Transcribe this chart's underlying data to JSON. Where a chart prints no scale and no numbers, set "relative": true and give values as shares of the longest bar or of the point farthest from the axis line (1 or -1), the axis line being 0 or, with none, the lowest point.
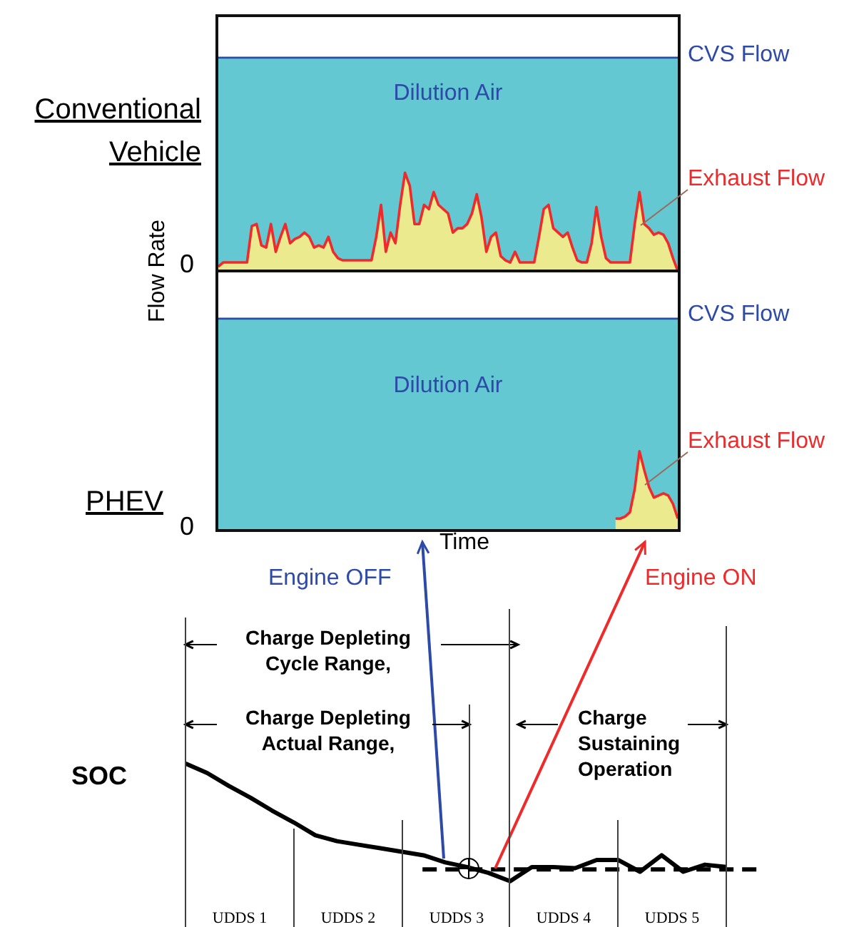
{
  "chart_data": [
    {
      "type": "area",
      "title": "Conventional Vehicle",
      "ylabel": "Flow Rate",
      "relative": true,
      "categories": [
        null,
        null,
        null,
        null,
        null,
        null,
        null,
        null,
        null,
        null,
        null,
        null,
        null,
        null,
        null,
        null,
        null,
        null,
        null,
        null,
        null,
        null,
        null,
        null,
        null,
        null,
        null,
        null,
        null,
        null,
        null,
        null,
        null,
        null,
        null,
        null,
        null,
        null,
        null,
        null,
        null,
        null,
        null,
        null,
        null,
        null,
        null,
        null,
        null,
        null,
        null,
        null,
        null,
        null,
        null,
        null,
        null,
        null,
        null,
        null,
        null,
        null,
        null,
        null,
        null,
        null,
        null,
        null,
        null,
        null,
        null,
        null,
        null,
        null,
        null,
        null,
        null,
        null,
        null,
        null,
        null,
        null,
        null,
        null,
        null,
        null,
        null,
        null,
        null,
        null,
        null,
        null,
        null,
        null,
        null,
        null,
        null
      ],
      "series": [
        {
          "name": "CVS Flow",
          "type": "line",
          "color": "#2e4aa8",
          "values": [
            1,
            1,
            1,
            1,
            1,
            1,
            1,
            1,
            1,
            1,
            1,
            1,
            1,
            1,
            1,
            1,
            1,
            1,
            1,
            1,
            1,
            1,
            1,
            1,
            1,
            1,
            1,
            1,
            1,
            1,
            1,
            1,
            1,
            1,
            1,
            1,
            1,
            1,
            1,
            1,
            1,
            1,
            1,
            1,
            1,
            1,
            1,
            1,
            1,
            1,
            1,
            1,
            1,
            1,
            1,
            1,
            1,
            1,
            1,
            1,
            1,
            1,
            1,
            1,
            1,
            1,
            1,
            1,
            1,
            1,
            1,
            1,
            1,
            1,
            1,
            1,
            1,
            1,
            1,
            1,
            1,
            1,
            1,
            1,
            1,
            1,
            1,
            1,
            1,
            1,
            1,
            1,
            1,
            1,
            1,
            1,
            1
          ]
        },
        {
          "name": "Exhaust Flow",
          "color": "#ee2a2a",
          "values": [
            0.02,
            0.04,
            0.04,
            0.04,
            0.04,
            0.04,
            0.04,
            0.21,
            0.22,
            0.12,
            0.11,
            0.22,
            0.09,
            0.16,
            0.22,
            0.13,
            0.15,
            0.16,
            0.18,
            0.16,
            0.11,
            0.12,
            0.11,
            0.16,
            0.09,
            0.06,
            0.05,
            0.05,
            0.05,
            0.05,
            0.05,
            0.05,
            0.05,
            0.16,
            0.31,
            0.09,
            0.18,
            0.13,
            0.31,
            0.46,
            0.4,
            0.22,
            0.22,
            0.31,
            0.29,
            0.37,
            0.31,
            0.29,
            0.27,
            0.18,
            0.2,
            0.2,
            0.22,
            0.27,
            0.36,
            0.25,
            0.09,
            0.16,
            0.18,
            0.07,
            0.05,
            0.04,
            0.09,
            0.04,
            0.04,
            0.04,
            0.04,
            0.16,
            0.29,
            0.31,
            0.2,
            0.18,
            0.16,
            0.18,
            0.11,
            0.05,
            0.04,
            0.04,
            0.13,
            0.3,
            0.16,
            0.06,
            0.04,
            0.04,
            0.04,
            0.04,
            0.04,
            0.22,
            0.37,
            0.22,
            0.2,
            0.17,
            0.18,
            0.17,
            0.13,
            0.06,
            0
          ]
        }
      ],
      "bands": [
        {
          "axis": "y",
          "from": 0,
          "to": 1,
          "label": "Dilution Air",
          "color": "#63c8d2"
        }
      ],
      "annotations": [
        "0"
      ]
    },
    {
      "type": "area",
      "title": "PHEV",
      "xlabel": "Time",
      "relative": true,
      "categories": [
        null,
        null,
        null,
        null,
        null,
        null,
        null,
        null,
        null,
        null,
        null,
        null,
        null,
        null,
        null,
        null,
        null,
        null,
        null,
        null,
        null,
        null,
        null,
        null,
        null,
        null,
        null,
        null,
        null,
        null,
        null,
        null,
        null,
        null,
        null,
        null,
        null,
        null,
        null,
        null,
        null,
        null,
        null,
        null,
        null,
        null,
        null,
        null,
        null,
        null,
        null,
        null,
        null,
        null,
        null,
        null,
        null,
        null,
        null,
        null,
        null,
        null,
        null,
        null,
        null,
        null,
        null,
        null,
        null,
        null,
        null,
        null,
        null,
        null,
        null,
        null,
        null,
        null,
        null,
        null,
        null,
        null,
        null,
        null,
        null,
        null,
        null,
        null,
        null,
        null,
        null,
        null,
        null,
        null,
        null,
        null,
        null
      ],
      "series": [
        {
          "name": "CVS Flow",
          "type": "line",
          "color": "#2e4aa8",
          "values": [
            1,
            1,
            1,
            1,
            1,
            1,
            1,
            1,
            1,
            1,
            1,
            1,
            1,
            1,
            1,
            1,
            1,
            1,
            1,
            1,
            1,
            1,
            1,
            1,
            1,
            1,
            1,
            1,
            1,
            1,
            1,
            1,
            1,
            1,
            1,
            1,
            1,
            1,
            1,
            1,
            1,
            1,
            1,
            1,
            1,
            1,
            1,
            1,
            1,
            1,
            1,
            1,
            1,
            1,
            1,
            1,
            1,
            1,
            1,
            1,
            1,
            1,
            1,
            1,
            1,
            1,
            1,
            1,
            1,
            1,
            1,
            1,
            1,
            1,
            1,
            1,
            1,
            1,
            1,
            1,
            1,
            1,
            1,
            1,
            1,
            1,
            1,
            1,
            1,
            1,
            1,
            1,
            1,
            1,
            1,
            1,
            1
          ]
        },
        {
          "name": "Exhaust Flow",
          "color": "#ee2a2a",
          "values": [
            null,
            null,
            null,
            null,
            null,
            null,
            null,
            null,
            null,
            null,
            null,
            null,
            null,
            null,
            null,
            null,
            null,
            null,
            null,
            null,
            null,
            null,
            null,
            null,
            null,
            null,
            null,
            null,
            null,
            null,
            null,
            null,
            null,
            null,
            null,
            null,
            null,
            null,
            null,
            null,
            null,
            null,
            null,
            null,
            null,
            null,
            null,
            null,
            null,
            null,
            null,
            null,
            null,
            null,
            null,
            null,
            null,
            null,
            null,
            null,
            null,
            null,
            null,
            null,
            null,
            null,
            null,
            null,
            null,
            null,
            null,
            null,
            null,
            null,
            null,
            null,
            null,
            null,
            null,
            null,
            null,
            null,
            null,
            0.05,
            0.05,
            0.06,
            0.08,
            0.19,
            0.37,
            0.28,
            0.2,
            0.15,
            0.16,
            0.17,
            0.16,
            0.12,
            0.05
          ]
        }
      ],
      "bands": [
        {
          "axis": "y",
          "from": 0,
          "to": 1,
          "label": "Dilution Air",
          "color": "#63c8d2"
        }
      ],
      "annotations": [
        "0"
      ]
    },
    {
      "type": "line",
      "ylabel": "SOC",
      "relative": true,
      "categories": [
        null,
        null,
        null,
        null,
        null,
        null,
        null,
        null,
        null,
        null,
        null,
        null,
        null,
        null,
        null,
        null,
        null,
        null,
        null,
        null,
        null,
        null,
        null,
        null,
        null,
        null
      ],
      "grid": "x",
      "series": [
        {
          "color": "#000000",
          "values": [
            1,
            0.92,
            0.81,
            0.71,
            0.6,
            0.5,
            0.39,
            0.34,
            0.31,
            0.28,
            0.25,
            0.22,
            0.16,
            0.12,
            0.07,
            0,
            0.12,
            0.12,
            0.11,
            0.18,
            0.18,
            0.08,
            0.22,
            0.08,
            0.14,
            0.12
          ]
        }
      ],
      "ref_lines": [
        {
          "axis": "y",
          "value": 0.1,
          "color": "#000000",
          "line_style": "dashed"
        }
      ],
      "annotations": [
        "Engine OFF",
        "Engine ON",
        "Charge Depleting Cycle Range,",
        "Charge Depleting Actual Range,",
        "Charge Sustaining Operation",
        "UDDS 1",
        "UDDS 2",
        "UDDS 3",
        "UDDS 4",
        "UDDS 5"
      ]
    }
  ]
}
